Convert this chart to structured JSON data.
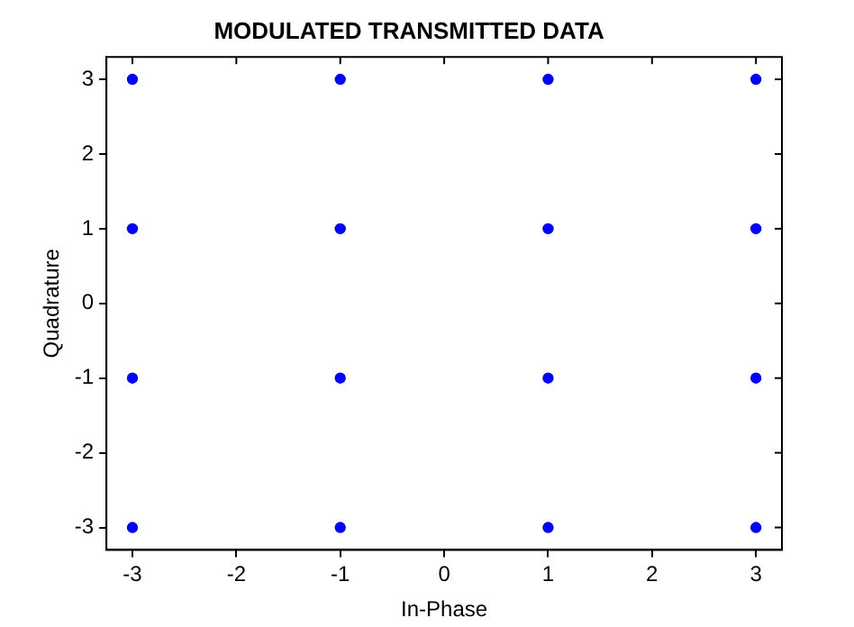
{
  "chart_data": {
    "type": "scatter",
    "title": "MODULATED TRANSMITTED DATA",
    "xlabel": "In-Phase",
    "ylabel": "Quadrature",
    "x": [
      -3,
      -3,
      -3,
      -3,
      -1,
      -1,
      -1,
      -1,
      1,
      1,
      1,
      1,
      3,
      3,
      3,
      3
    ],
    "series": [
      {
        "color": "#0000ff",
        "values": [
          3,
          1,
          -1,
          -3,
          3,
          1,
          -1,
          -3,
          3,
          1,
          -1,
          -3,
          3,
          1,
          -1,
          -3
        ]
      }
    ],
    "xlim": [
      -3.25,
      3.25
    ],
    "ylim": [
      -3.3,
      3.3
    ],
    "xticks": [
      -3,
      -2,
      -1,
      0,
      1,
      2,
      3
    ],
    "yticks": [
      -3,
      -2,
      -1,
      0,
      1,
      2,
      3
    ],
    "grid": false,
    "legend": false,
    "marker": "circle"
  }
}
